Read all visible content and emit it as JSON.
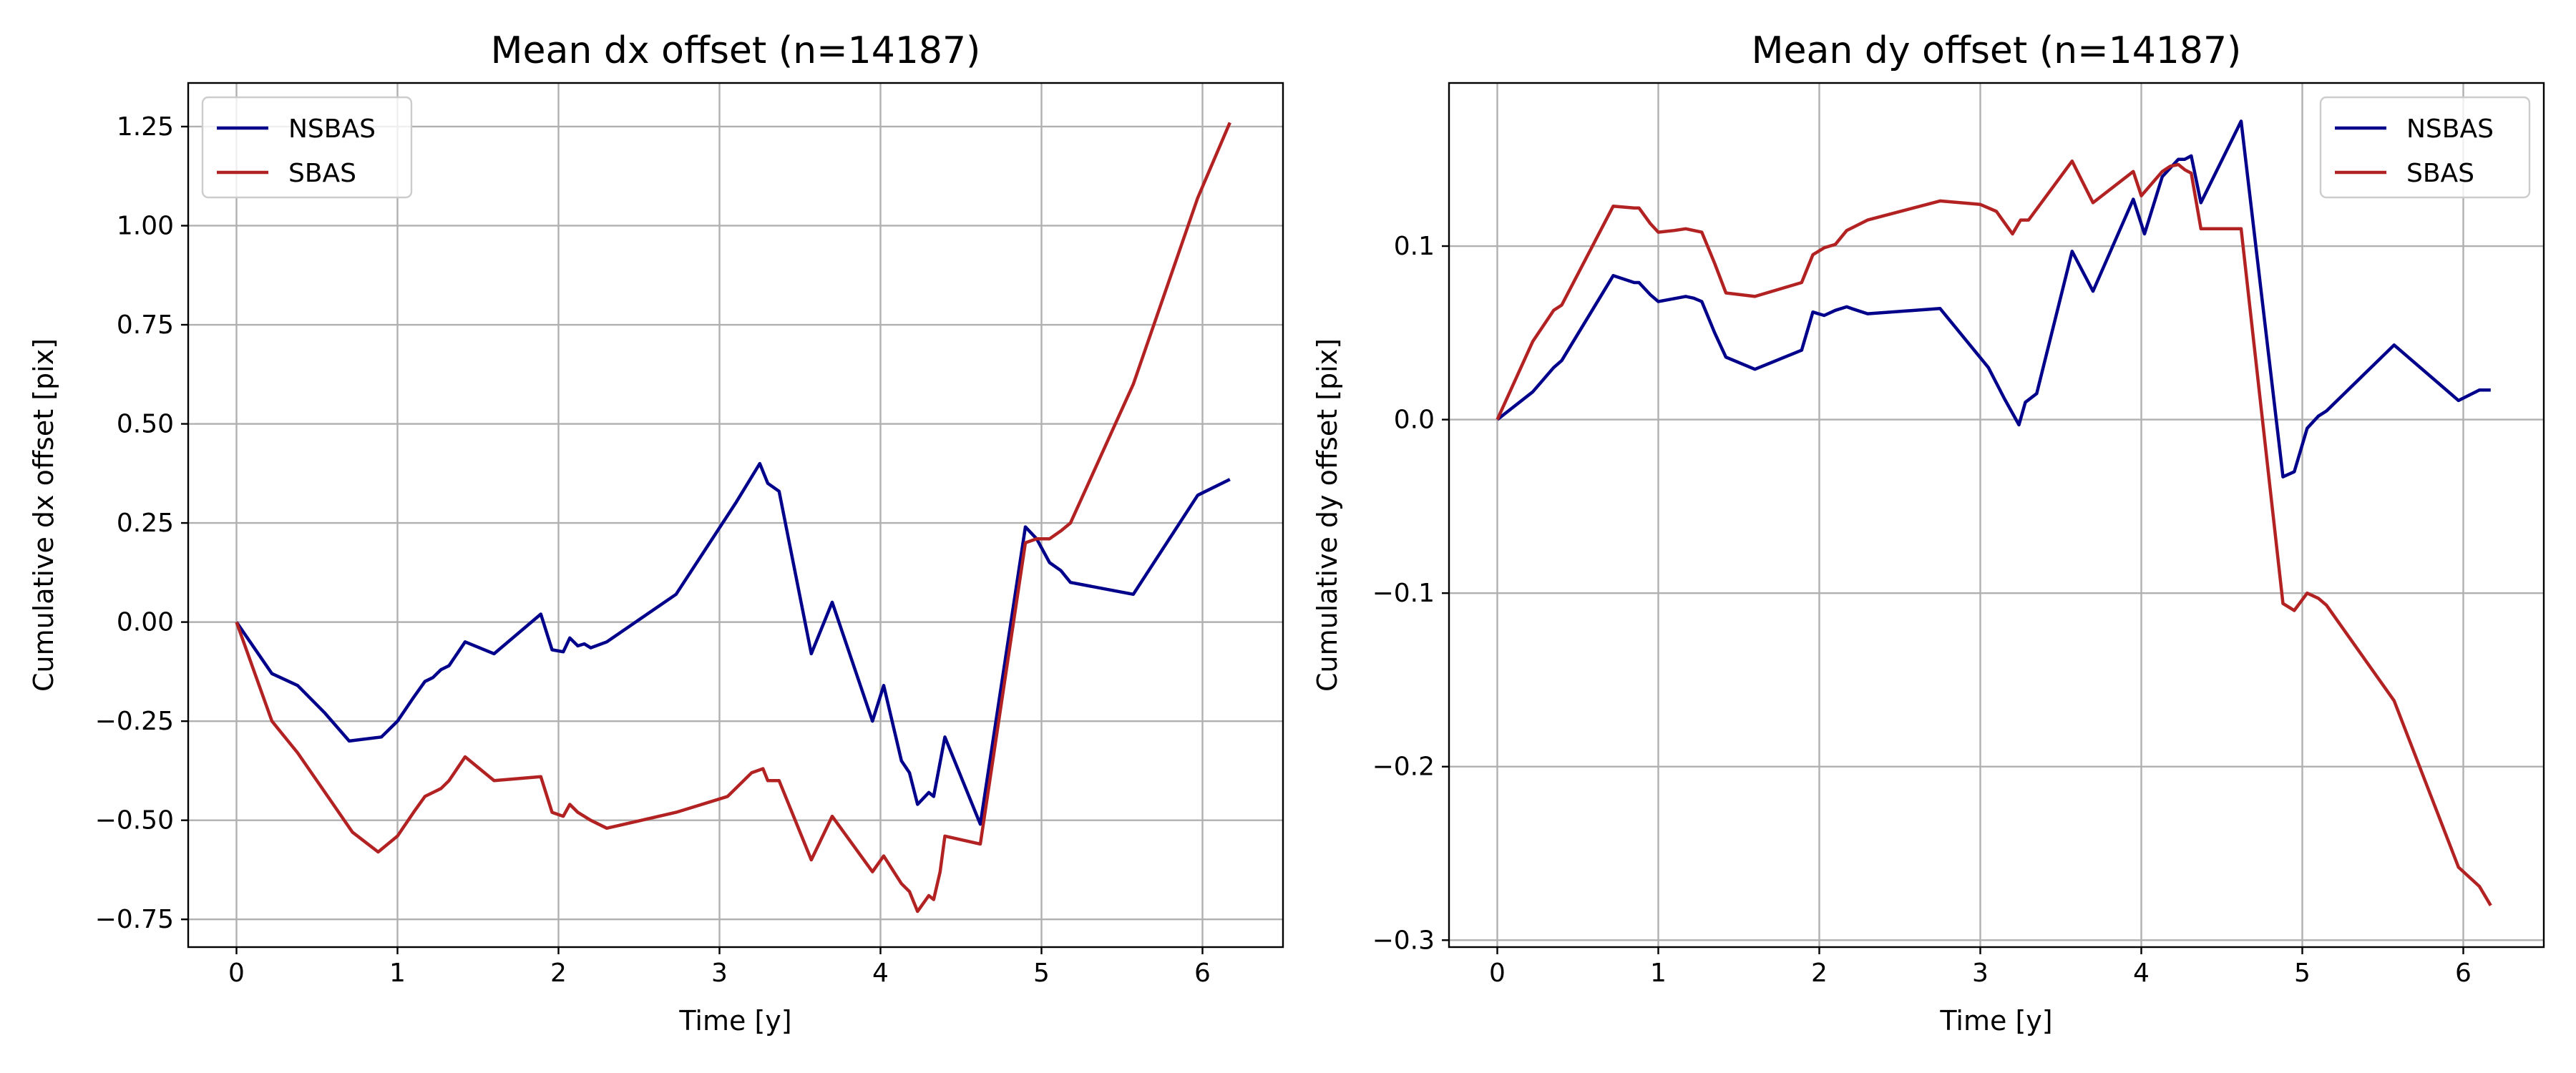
{
  "chart_data": [
    {
      "type": "line",
      "title": "Mean dx offset (n=14187)",
      "xlabel": "Time [y]",
      "ylabel": "Cumulative dx offset [pix]",
      "xlim": [
        -0.3,
        6.5
      ],
      "ylim": [
        -0.82,
        1.36
      ],
      "xticks": [
        0,
        1,
        2,
        3,
        4,
        5,
        6
      ],
      "xtick_labels": [
        "0",
        "1",
        "2",
        "3",
        "4",
        "5",
        "6"
      ],
      "yticks": [
        -0.75,
        -0.5,
        -0.25,
        0.0,
        0.25,
        0.5,
        0.75,
        1.0,
        1.25
      ],
      "ytick_labels": [
        "−0.75",
        "−0.50",
        "−0.25",
        "0.00",
        "0.25",
        "0.50",
        "0.75",
        "1.00",
        "1.25"
      ],
      "grid": true,
      "legend": "upper-left",
      "series": [
        {
          "name": "NSBAS",
          "color": "#00008b",
          "points": [
            [
              0,
              0
            ],
            [
              0.22,
              -0.13
            ],
            [
              0.38,
              -0.16
            ],
            [
              0.55,
              -0.23
            ],
            [
              0.7,
              -0.3
            ],
            [
              0.9,
              -0.29
            ],
            [
              1.0,
              -0.25
            ],
            [
              1.1,
              -0.19
            ],
            [
              1.17,
              -0.15
            ],
            [
              1.22,
              -0.14
            ],
            [
              1.27,
              -0.12
            ],
            [
              1.32,
              -0.11
            ],
            [
              1.42,
              -0.05
            ],
            [
              1.6,
              -0.08
            ],
            [
              1.89,
              0.02
            ],
            [
              1.96,
              -0.07
            ],
            [
              2.03,
              -0.075
            ],
            [
              2.07,
              -0.04
            ],
            [
              2.12,
              -0.06
            ],
            [
              2.16,
              -0.055
            ],
            [
              2.2,
              -0.065
            ],
            [
              2.3,
              -0.05
            ],
            [
              2.73,
              0.07
            ],
            [
              3.1,
              0.3
            ],
            [
              3.25,
              0.4
            ],
            [
              3.3,
              0.35
            ],
            [
              3.37,
              0.33
            ],
            [
              3.57,
              -0.08
            ],
            [
              3.7,
              0.05
            ],
            [
              3.95,
              -0.25
            ],
            [
              4.02,
              -0.16
            ],
            [
              4.13,
              -0.35
            ],
            [
              4.18,
              -0.38
            ],
            [
              4.23,
              -0.46
            ],
            [
              4.3,
              -0.43
            ],
            [
              4.33,
              -0.44
            ],
            [
              4.4,
              -0.29
            ],
            [
              4.62,
              -0.51
            ],
            [
              4.9,
              0.24
            ],
            [
              4.97,
              0.21
            ],
            [
              5.05,
              0.15
            ],
            [
              5.12,
              0.13
            ],
            [
              5.18,
              0.1
            ],
            [
              5.57,
              0.07
            ],
            [
              5.97,
              0.32
            ],
            [
              6.17,
              0.36
            ]
          ]
        },
        {
          "name": "SBAS",
          "color": "#b22222",
          "points": [
            [
              0,
              0
            ],
            [
              0.22,
              -0.25
            ],
            [
              0.38,
              -0.33
            ],
            [
              0.55,
              -0.43
            ],
            [
              0.72,
              -0.53
            ],
            [
              0.88,
              -0.58
            ],
            [
              1.0,
              -0.54
            ],
            [
              1.1,
              -0.48
            ],
            [
              1.17,
              -0.44
            ],
            [
              1.22,
              -0.43
            ],
            [
              1.27,
              -0.42
            ],
            [
              1.32,
              -0.4
            ],
            [
              1.42,
              -0.34
            ],
            [
              1.6,
              -0.4
            ],
            [
              1.89,
              -0.39
            ],
            [
              1.96,
              -0.48
            ],
            [
              2.03,
              -0.49
            ],
            [
              2.07,
              -0.46
            ],
            [
              2.12,
              -0.48
            ],
            [
              2.2,
              -0.5
            ],
            [
              2.3,
              -0.52
            ],
            [
              2.73,
              -0.48
            ],
            [
              3.05,
              -0.44
            ],
            [
              3.2,
              -0.38
            ],
            [
              3.27,
              -0.37
            ],
            [
              3.3,
              -0.4
            ],
            [
              3.37,
              -0.4
            ],
            [
              3.57,
              -0.6
            ],
            [
              3.7,
              -0.49
            ],
            [
              3.95,
              -0.63
            ],
            [
              4.02,
              -0.59
            ],
            [
              4.13,
              -0.66
            ],
            [
              4.18,
              -0.68
            ],
            [
              4.23,
              -0.73
            ],
            [
              4.3,
              -0.69
            ],
            [
              4.33,
              -0.7
            ],
            [
              4.37,
              -0.63
            ],
            [
              4.4,
              -0.54
            ],
            [
              4.62,
              -0.56
            ],
            [
              4.9,
              0.2
            ],
            [
              4.97,
              0.21
            ],
            [
              5.05,
              0.21
            ],
            [
              5.12,
              0.23
            ],
            [
              5.18,
              0.25
            ],
            [
              5.57,
              0.6
            ],
            [
              5.97,
              1.07
            ],
            [
              6.17,
              1.26
            ]
          ]
        }
      ]
    },
    {
      "type": "line",
      "title": "Mean dy offset (n=14187)",
      "xlabel": "Time [y]",
      "ylabel": "Cumulative dy offset [pix]",
      "xlim": [
        -0.3,
        6.5
      ],
      "ylim": [
        -0.304,
        0.194
      ],
      "xticks": [
        0,
        1,
        2,
        3,
        4,
        5,
        6
      ],
      "xtick_labels": [
        "0",
        "1",
        "2",
        "3",
        "4",
        "5",
        "6"
      ],
      "yticks": [
        -0.3,
        -0.2,
        -0.1,
        0.0,
        0.1
      ],
      "ytick_labels": [
        "−0.3",
        "−0.2",
        "−0.1",
        "0.0",
        "0.1"
      ],
      "grid": true,
      "legend": "upper-right",
      "series": [
        {
          "name": "NSBAS",
          "color": "#00008b",
          "points": [
            [
              0,
              0
            ],
            [
              0.22,
              0.016
            ],
            [
              0.35,
              0.03
            ],
            [
              0.4,
              0.034
            ],
            [
              0.72,
              0.083
            ],
            [
              0.85,
              0.079
            ],
            [
              0.88,
              0.079
            ],
            [
              0.95,
              0.072
            ],
            [
              1.0,
              0.068
            ],
            [
              1.17,
              0.071
            ],
            [
              1.22,
              0.07
            ],
            [
              1.27,
              0.068
            ],
            [
              1.35,
              0.05
            ],
            [
              1.42,
              0.036
            ],
            [
              1.6,
              0.029
            ],
            [
              1.89,
              0.04
            ],
            [
              1.96,
              0.062
            ],
            [
              2.03,
              0.06
            ],
            [
              2.1,
              0.063
            ],
            [
              2.17,
              0.065
            ],
            [
              2.2,
              0.064
            ],
            [
              2.3,
              0.061
            ],
            [
              2.75,
              0.064
            ],
            [
              3.05,
              0.03
            ],
            [
              3.15,
              0.012
            ],
            [
              3.24,
              -0.003
            ],
            [
              3.28,
              0.01
            ],
            [
              3.35,
              0.015
            ],
            [
              3.57,
              0.097
            ],
            [
              3.7,
              0.074
            ],
            [
              3.95,
              0.127
            ],
            [
              4.02,
              0.107
            ],
            [
              4.13,
              0.14
            ],
            [
              4.18,
              0.145
            ],
            [
              4.23,
              0.15
            ],
            [
              4.27,
              0.15
            ],
            [
              4.31,
              0.152
            ],
            [
              4.37,
              0.125
            ],
            [
              4.62,
              0.172
            ],
            [
              4.88,
              -0.033
            ],
            [
              4.95,
              -0.03
            ],
            [
              5.03,
              -0.005
            ],
            [
              5.1,
              0.002
            ],
            [
              5.15,
              0.005
            ],
            [
              5.57,
              0.043
            ],
            [
              5.97,
              0.011
            ],
            [
              6.1,
              0.017
            ],
            [
              6.17,
              0.017
            ]
          ]
        },
        {
          "name": "SBAS",
          "color": "#b22222",
          "points": [
            [
              0,
              0
            ],
            [
              0.22,
              0.045
            ],
            [
              0.35,
              0.063
            ],
            [
              0.4,
              0.066
            ],
            [
              0.72,
              0.123
            ],
            [
              0.85,
              0.122
            ],
            [
              0.88,
              0.122
            ],
            [
              0.95,
              0.113
            ],
            [
              1.0,
              0.108
            ],
            [
              1.1,
              0.109
            ],
            [
              1.17,
              0.11
            ],
            [
              1.22,
              0.109
            ],
            [
              1.27,
              0.108
            ],
            [
              1.35,
              0.09
            ],
            [
              1.42,
              0.073
            ],
            [
              1.6,
              0.071
            ],
            [
              1.89,
              0.079
            ],
            [
              1.96,
              0.095
            ],
            [
              2.03,
              0.099
            ],
            [
              2.1,
              0.101
            ],
            [
              2.17,
              0.109
            ],
            [
              2.3,
              0.115
            ],
            [
              2.75,
              0.126
            ],
            [
              3.0,
              0.124
            ],
            [
              3.1,
              0.12
            ],
            [
              3.2,
              0.107
            ],
            [
              3.25,
              0.115
            ],
            [
              3.3,
              0.115
            ],
            [
              3.57,
              0.149
            ],
            [
              3.7,
              0.125
            ],
            [
              3.95,
              0.143
            ],
            [
              4.0,
              0.129
            ],
            [
              4.13,
              0.143
            ],
            [
              4.18,
              0.146
            ],
            [
              4.23,
              0.147
            ],
            [
              4.27,
              0.144
            ],
            [
              4.31,
              0.142
            ],
            [
              4.37,
              0.11
            ],
            [
              4.62,
              0.11
            ],
            [
              4.88,
              -0.106
            ],
            [
              4.95,
              -0.11
            ],
            [
              5.03,
              -0.1
            ],
            [
              5.1,
              -0.103
            ],
            [
              5.15,
              -0.107
            ],
            [
              5.57,
              -0.162
            ],
            [
              5.97,
              -0.258
            ],
            [
              6.1,
              -0.269
            ],
            [
              6.17,
              -0.28
            ]
          ]
        }
      ]
    }
  ]
}
